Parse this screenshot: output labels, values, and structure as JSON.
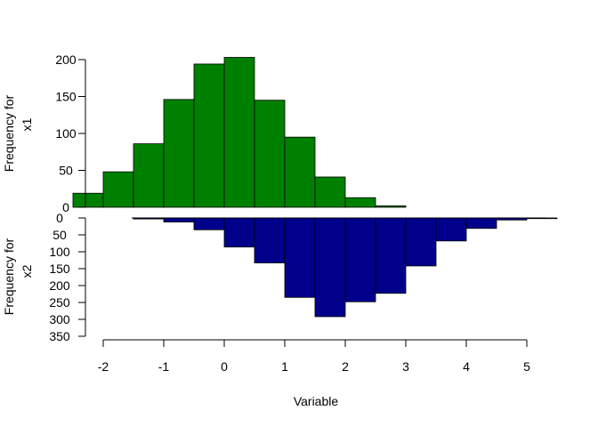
{
  "chart_data": {
    "type": "bar",
    "subtype": "back-to-back histogram",
    "xlabel": "Variable",
    "x_ticks": [
      -2,
      -1,
      0,
      1,
      2,
      3,
      4,
      5
    ],
    "bin_width": 0.5,
    "top": {
      "series_name": "x1",
      "ylabel_lines": [
        "Frequency for",
        "x1"
      ],
      "color": "#008000",
      "ylim": [
        0,
        200
      ],
      "y_ticks": [
        0,
        50,
        100,
        150,
        200
      ],
      "bins": [
        {
          "start": -2.5,
          "end": -2.0,
          "count": 19
        },
        {
          "start": -2.0,
          "end": -1.5,
          "count": 48
        },
        {
          "start": -1.5,
          "end": -1.0,
          "count": 86
        },
        {
          "start": -1.0,
          "end": -0.5,
          "count": 146
        },
        {
          "start": -0.5,
          "end": 0.0,
          "count": 194
        },
        {
          "start": 0.0,
          "end": 0.5,
          "count": 203
        },
        {
          "start": 0.5,
          "end": 1.0,
          "count": 145
        },
        {
          "start": 1.0,
          "end": 1.5,
          "count": 95
        },
        {
          "start": 1.5,
          "end": 2.0,
          "count": 41
        },
        {
          "start": 2.0,
          "end": 2.5,
          "count": 13
        },
        {
          "start": 2.5,
          "end": 3.0,
          "count": 2
        }
      ]
    },
    "bottom": {
      "series_name": "x2",
      "ylabel_lines": [
        "Frequency for",
        "x2"
      ],
      "color": "#00008B",
      "ylim": [
        350,
        0
      ],
      "y_ticks": [
        0,
        50,
        100,
        150,
        200,
        250,
        300,
        350
      ],
      "bins": [
        {
          "start": -1.5,
          "end": -1.0,
          "count": 3
        },
        {
          "start": -1.0,
          "end": -0.5,
          "count": 12
        },
        {
          "start": -0.5,
          "end": 0.0,
          "count": 35
        },
        {
          "start": 0.0,
          "end": 0.5,
          "count": 86
        },
        {
          "start": 0.5,
          "end": 1.0,
          "count": 133
        },
        {
          "start": 1.0,
          "end": 1.5,
          "count": 235
        },
        {
          "start": 1.5,
          "end": 2.0,
          "count": 292
        },
        {
          "start": 2.0,
          "end": 2.5,
          "count": 248
        },
        {
          "start": 2.5,
          "end": 3.0,
          "count": 223
        },
        {
          "start": 3.0,
          "end": 3.5,
          "count": 142
        },
        {
          "start": 3.5,
          "end": 4.0,
          "count": 68
        },
        {
          "start": 4.0,
          "end": 4.5,
          "count": 31
        },
        {
          "start": 4.5,
          "end": 5.0,
          "count": 6
        },
        {
          "start": 5.0,
          "end": 5.5,
          "count": 2
        }
      ]
    }
  }
}
